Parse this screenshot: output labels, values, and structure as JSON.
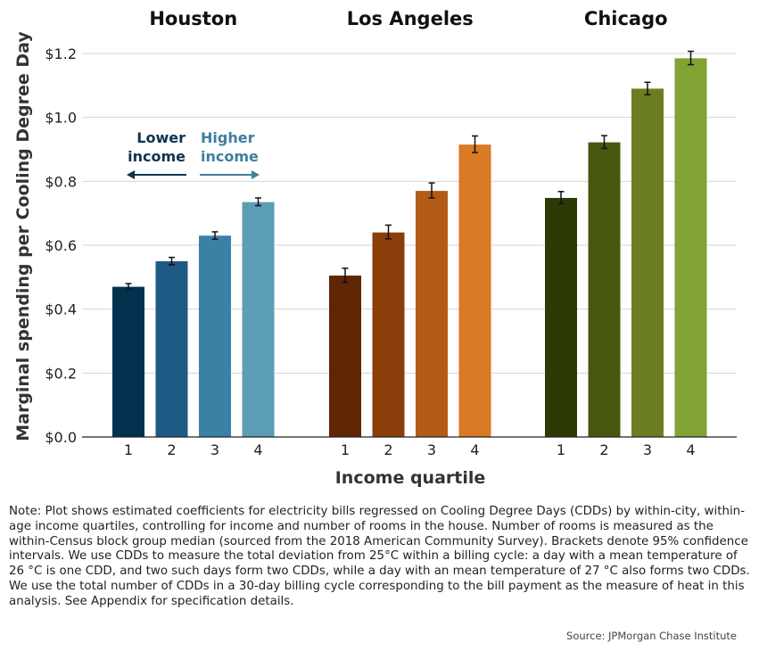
{
  "chart_data": {
    "type": "bar",
    "ylabel": "Marginal spending per Cooling Degree Day",
    "xlabel": "Income quartile",
    "ylim": [
      0,
      1.2
    ],
    "yticks": [
      0.0,
      0.2,
      0.4,
      0.6,
      0.8,
      1.0,
      1.2
    ],
    "ytick_labels": [
      "$0.0",
      "$0.2",
      "$0.4",
      "$0.6",
      "$0.8",
      "$1.0",
      "$1.2"
    ],
    "grid": true,
    "categories": [
      "1",
      "2",
      "3",
      "4"
    ],
    "series": [
      {
        "name": "Houston",
        "colors": [
          "#02304d",
          "#1d5a86",
          "#3a81a6",
          "#5c9db6"
        ],
        "values": [
          0.47,
          0.55,
          0.63,
          0.735
        ],
        "ci": [
          [
            0.461,
            0.48
          ],
          [
            0.539,
            0.562
          ],
          [
            0.619,
            0.642
          ],
          [
            0.724,
            0.748
          ]
        ]
      },
      {
        "name": "Los Angeles",
        "colors": [
          "#5e2604",
          "#8a3f0a",
          "#b35b16",
          "#d97a25"
        ],
        "values": [
          0.505,
          0.64,
          0.77,
          0.915
        ],
        "ci": [
          [
            0.484,
            0.528
          ],
          [
            0.62,
            0.663
          ],
          [
            0.748,
            0.795
          ],
          [
            0.89,
            0.942
          ]
        ]
      },
      {
        "name": "Chicago",
        "colors": [
          "#2c3a03",
          "#47580e",
          "#6a7d20",
          "#82a234"
        ],
        "values": [
          0.748,
          0.922,
          1.09,
          1.185
        ],
        "ci": [
          [
            0.73,
            0.768
          ],
          [
            0.903,
            0.943
          ],
          [
            1.071,
            1.11
          ],
          [
            1.165,
            1.207
          ]
        ]
      }
    ],
    "annotation": {
      "lower_line1": "Lower",
      "lower_line2": "income",
      "higher_line1": "Higher",
      "higher_line2": "income",
      "lower_color": "#0c3451",
      "higher_color": "#3f7f9c"
    }
  },
  "note": "Note: Plot shows estimated coefficients for electricity bills regressed on Cooling Degree Days (CDDs) by within-city, within-age income quartiles, controlling for income and number of rooms in the house. Number of rooms is measured as the within-Census block group median (sourced from the 2018 American Community Survey). Brackets denote 95% confidence intervals. We use CDDs to measure the total deviation from 25°C within a billing cycle: a day with a mean temperature of 26 °C is one CDD, and two such days form two CDDs, while a day with an mean temperature of 27 °C also forms two CDDs. We use the total number of CDDs in a 30-day billing cycle corresponding to the bill payment as the measure of heat in this analysis. See Appendix for specification details.",
  "source": "Source: JPMorgan Chase Institute"
}
